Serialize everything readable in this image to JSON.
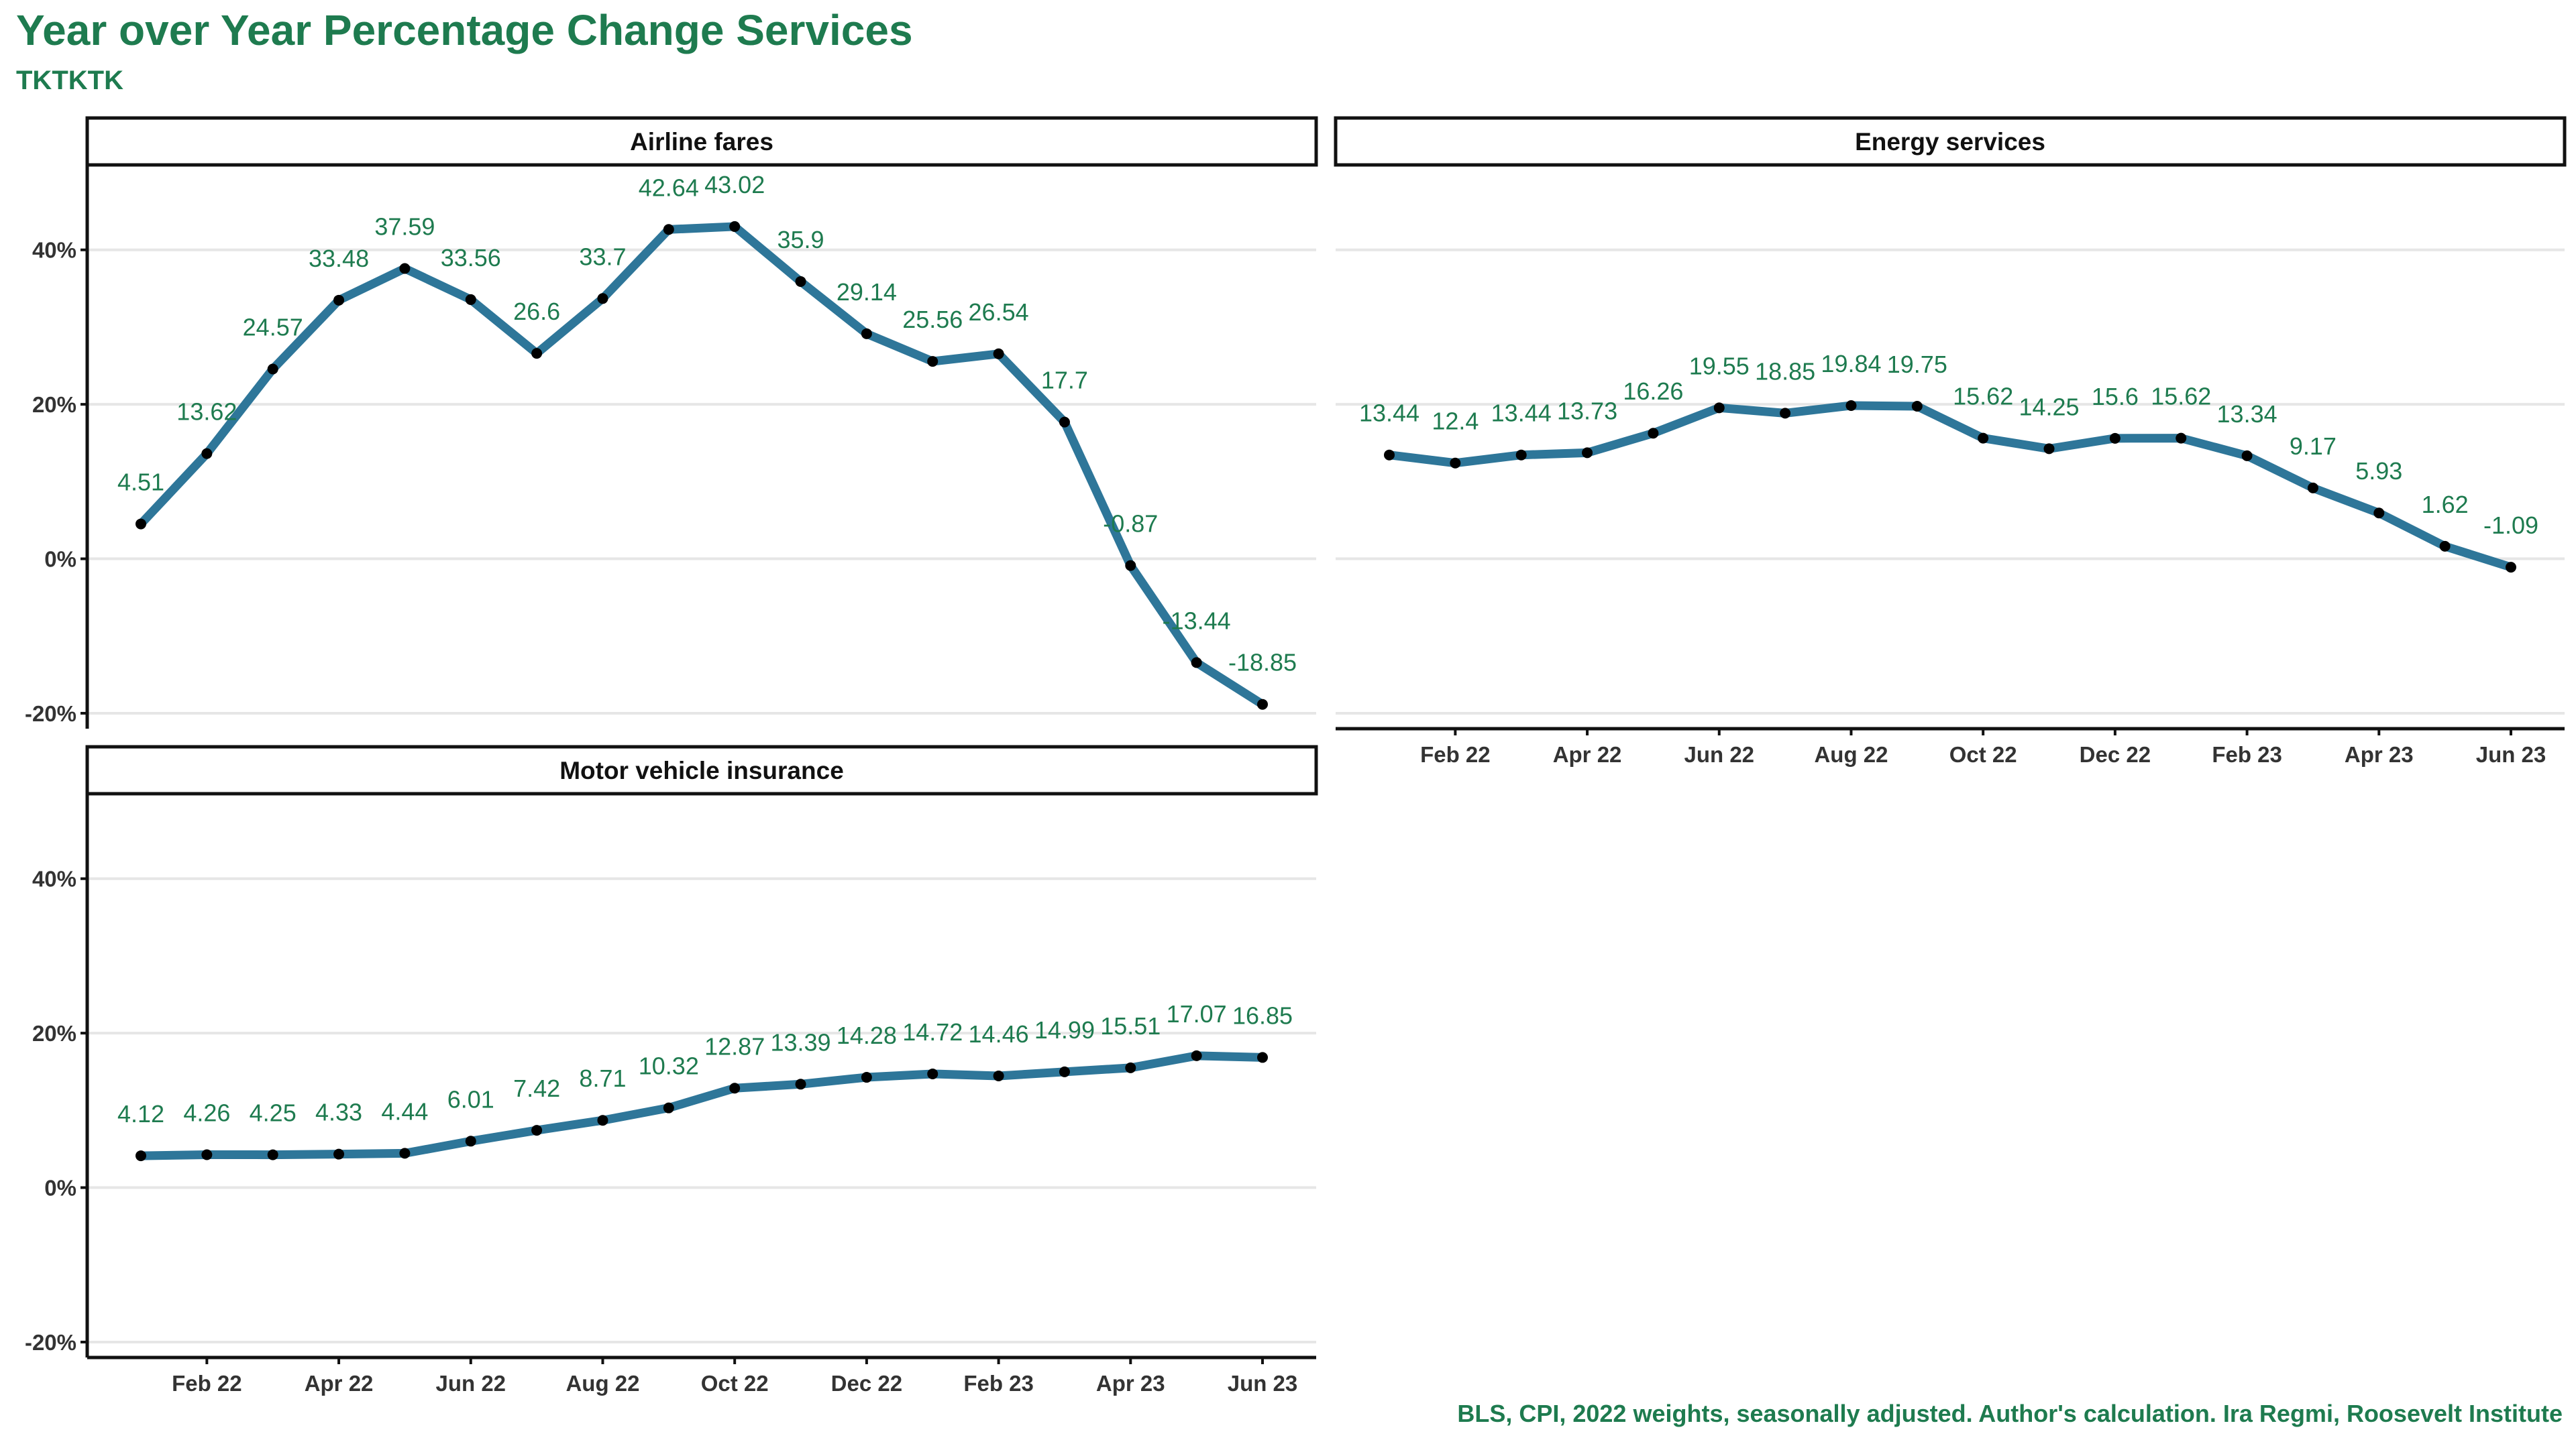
{
  "title": "Year over Year Percentage Change Services",
  "subtitle": "TKTKTK",
  "caption": "BLS, CPI, 2022 weights, seasonally adjusted. Author's calculation. Ira Regmi, Roosevelt Institute",
  "colors": {
    "title": "#1e7b4f",
    "line": "#2e7699",
    "point": "#000000",
    "label": "#1e7b4f",
    "grid": "#e6e6e6"
  },
  "chart_data": {
    "type": "line",
    "x": [
      "Jan 22",
      "Feb 22",
      "Mar 22",
      "Apr 22",
      "May 22",
      "Jun 22",
      "Jul 22",
      "Aug 22",
      "Sep 22",
      "Oct 22",
      "Nov 22",
      "Dec 22",
      "Jan 23",
      "Feb 23",
      "Mar 23",
      "Apr 23",
      "May 23",
      "Jun 23"
    ],
    "x_tick_labels": [
      "Feb 22",
      "Apr 22",
      "Jun 22",
      "Aug 22",
      "Oct 22",
      "Dec 22",
      "Feb 23",
      "Apr 23",
      "Jun 23"
    ],
    "y_tick_labels": [
      "-20%",
      "0%",
      "20%",
      "40%"
    ],
    "ylim": [
      -22,
      51
    ],
    "grid": true,
    "panels": [
      {
        "name": "Airline fares",
        "values": [
          4.51,
          13.62,
          24.57,
          33.48,
          37.59,
          33.56,
          26.6,
          33.7,
          42.64,
          43.02,
          35.9,
          29.14,
          25.56,
          26.54,
          17.7,
          -0.87,
          -13.44,
          -18.85
        ],
        "labels": [
          "4.51",
          "13.62",
          "24.57",
          "33.48",
          "37.59",
          "33.56",
          "26.6",
          "33.7",
          "42.64",
          "43.02",
          "35.9",
          "29.14",
          "25.56",
          "26.54",
          "17.7",
          "-0.87",
          "-13.44",
          "-18.85"
        ]
      },
      {
        "name": "Energy services",
        "values": [
          13.44,
          12.4,
          13.44,
          13.73,
          16.26,
          19.55,
          18.85,
          19.84,
          19.75,
          15.62,
          14.25,
          15.6,
          15.62,
          13.34,
          9.17,
          5.93,
          1.62,
          -1.09
        ],
        "labels": [
          "13.44",
          "12.4",
          "13.44",
          "13.73",
          "16.26",
          "19.55",
          "18.85",
          "19.84",
          "19.75",
          "15.62",
          "14.25",
          "15.6",
          "15.62",
          "13.34",
          "9.17",
          "5.93",
          "1.62",
          "-1.09"
        ]
      },
      {
        "name": "Motor vehicle insurance",
        "values": [
          4.12,
          4.26,
          4.25,
          4.33,
          4.44,
          6.01,
          7.42,
          8.71,
          10.32,
          12.87,
          13.39,
          14.28,
          14.72,
          14.46,
          14.99,
          15.51,
          17.07,
          16.85
        ],
        "labels": [
          "4.12",
          "4.26",
          "4.25",
          "4.33",
          "4.44",
          "6.01",
          "7.42",
          "8.71",
          "10.32",
          "12.87",
          "13.39",
          "14.28",
          "14.72",
          "14.46",
          "14.99",
          "15.51",
          "17.07",
          "16.85"
        ]
      }
    ]
  }
}
